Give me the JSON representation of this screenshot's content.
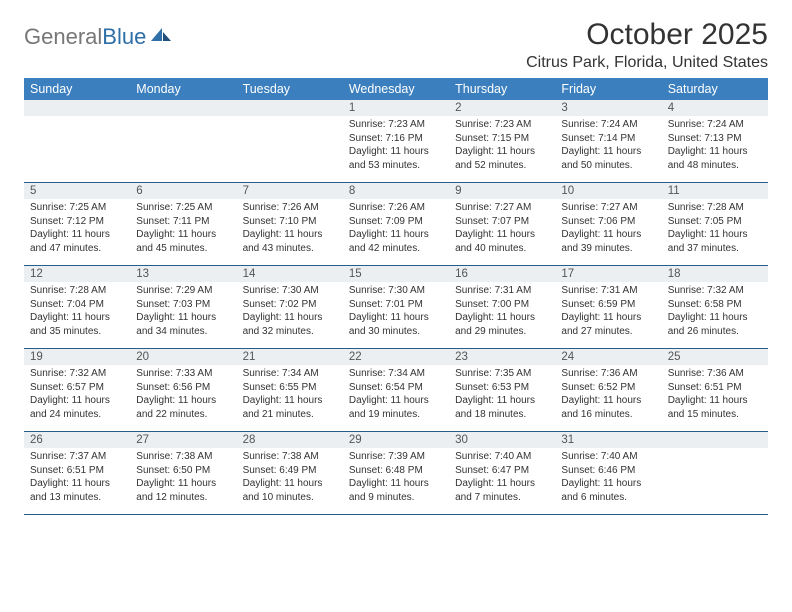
{
  "logo": {
    "text_gray": "General",
    "text_blue": "Blue"
  },
  "title": "October 2025",
  "location": "Citrus Park, Florida, United States",
  "colors": {
    "header_bg": "#3b7fbf",
    "header_text": "#ffffff",
    "daynum_bg": "#eceff1",
    "week_border": "#2a5c8a",
    "text": "#333333"
  },
  "day_labels": [
    "Sunday",
    "Monday",
    "Tuesday",
    "Wednesday",
    "Thursday",
    "Friday",
    "Saturday"
  ],
  "weeks": [
    [
      {
        "n": "",
        "sr": "",
        "ss": "",
        "dl": ""
      },
      {
        "n": "",
        "sr": "",
        "ss": "",
        "dl": ""
      },
      {
        "n": "",
        "sr": "",
        "ss": "",
        "dl": ""
      },
      {
        "n": "1",
        "sr": "Sunrise: 7:23 AM",
        "ss": "Sunset: 7:16 PM",
        "dl": "Daylight: 11 hours and 53 minutes."
      },
      {
        "n": "2",
        "sr": "Sunrise: 7:23 AM",
        "ss": "Sunset: 7:15 PM",
        "dl": "Daylight: 11 hours and 52 minutes."
      },
      {
        "n": "3",
        "sr": "Sunrise: 7:24 AM",
        "ss": "Sunset: 7:14 PM",
        "dl": "Daylight: 11 hours and 50 minutes."
      },
      {
        "n": "4",
        "sr": "Sunrise: 7:24 AM",
        "ss": "Sunset: 7:13 PM",
        "dl": "Daylight: 11 hours and 48 minutes."
      }
    ],
    [
      {
        "n": "5",
        "sr": "Sunrise: 7:25 AM",
        "ss": "Sunset: 7:12 PM",
        "dl": "Daylight: 11 hours and 47 minutes."
      },
      {
        "n": "6",
        "sr": "Sunrise: 7:25 AM",
        "ss": "Sunset: 7:11 PM",
        "dl": "Daylight: 11 hours and 45 minutes."
      },
      {
        "n": "7",
        "sr": "Sunrise: 7:26 AM",
        "ss": "Sunset: 7:10 PM",
        "dl": "Daylight: 11 hours and 43 minutes."
      },
      {
        "n": "8",
        "sr": "Sunrise: 7:26 AM",
        "ss": "Sunset: 7:09 PM",
        "dl": "Daylight: 11 hours and 42 minutes."
      },
      {
        "n": "9",
        "sr": "Sunrise: 7:27 AM",
        "ss": "Sunset: 7:07 PM",
        "dl": "Daylight: 11 hours and 40 minutes."
      },
      {
        "n": "10",
        "sr": "Sunrise: 7:27 AM",
        "ss": "Sunset: 7:06 PM",
        "dl": "Daylight: 11 hours and 39 minutes."
      },
      {
        "n": "11",
        "sr": "Sunrise: 7:28 AM",
        "ss": "Sunset: 7:05 PM",
        "dl": "Daylight: 11 hours and 37 minutes."
      }
    ],
    [
      {
        "n": "12",
        "sr": "Sunrise: 7:28 AM",
        "ss": "Sunset: 7:04 PM",
        "dl": "Daylight: 11 hours and 35 minutes."
      },
      {
        "n": "13",
        "sr": "Sunrise: 7:29 AM",
        "ss": "Sunset: 7:03 PM",
        "dl": "Daylight: 11 hours and 34 minutes."
      },
      {
        "n": "14",
        "sr": "Sunrise: 7:30 AM",
        "ss": "Sunset: 7:02 PM",
        "dl": "Daylight: 11 hours and 32 minutes."
      },
      {
        "n": "15",
        "sr": "Sunrise: 7:30 AM",
        "ss": "Sunset: 7:01 PM",
        "dl": "Daylight: 11 hours and 30 minutes."
      },
      {
        "n": "16",
        "sr": "Sunrise: 7:31 AM",
        "ss": "Sunset: 7:00 PM",
        "dl": "Daylight: 11 hours and 29 minutes."
      },
      {
        "n": "17",
        "sr": "Sunrise: 7:31 AM",
        "ss": "Sunset: 6:59 PM",
        "dl": "Daylight: 11 hours and 27 minutes."
      },
      {
        "n": "18",
        "sr": "Sunrise: 7:32 AM",
        "ss": "Sunset: 6:58 PM",
        "dl": "Daylight: 11 hours and 26 minutes."
      }
    ],
    [
      {
        "n": "19",
        "sr": "Sunrise: 7:32 AM",
        "ss": "Sunset: 6:57 PM",
        "dl": "Daylight: 11 hours and 24 minutes."
      },
      {
        "n": "20",
        "sr": "Sunrise: 7:33 AM",
        "ss": "Sunset: 6:56 PM",
        "dl": "Daylight: 11 hours and 22 minutes."
      },
      {
        "n": "21",
        "sr": "Sunrise: 7:34 AM",
        "ss": "Sunset: 6:55 PM",
        "dl": "Daylight: 11 hours and 21 minutes."
      },
      {
        "n": "22",
        "sr": "Sunrise: 7:34 AM",
        "ss": "Sunset: 6:54 PM",
        "dl": "Daylight: 11 hours and 19 minutes."
      },
      {
        "n": "23",
        "sr": "Sunrise: 7:35 AM",
        "ss": "Sunset: 6:53 PM",
        "dl": "Daylight: 11 hours and 18 minutes."
      },
      {
        "n": "24",
        "sr": "Sunrise: 7:36 AM",
        "ss": "Sunset: 6:52 PM",
        "dl": "Daylight: 11 hours and 16 minutes."
      },
      {
        "n": "25",
        "sr": "Sunrise: 7:36 AM",
        "ss": "Sunset: 6:51 PM",
        "dl": "Daylight: 11 hours and 15 minutes."
      }
    ],
    [
      {
        "n": "26",
        "sr": "Sunrise: 7:37 AM",
        "ss": "Sunset: 6:51 PM",
        "dl": "Daylight: 11 hours and 13 minutes."
      },
      {
        "n": "27",
        "sr": "Sunrise: 7:38 AM",
        "ss": "Sunset: 6:50 PM",
        "dl": "Daylight: 11 hours and 12 minutes."
      },
      {
        "n": "28",
        "sr": "Sunrise: 7:38 AM",
        "ss": "Sunset: 6:49 PM",
        "dl": "Daylight: 11 hours and 10 minutes."
      },
      {
        "n": "29",
        "sr": "Sunrise: 7:39 AM",
        "ss": "Sunset: 6:48 PM",
        "dl": "Daylight: 11 hours and 9 minutes."
      },
      {
        "n": "30",
        "sr": "Sunrise: 7:40 AM",
        "ss": "Sunset: 6:47 PM",
        "dl": "Daylight: 11 hours and 7 minutes."
      },
      {
        "n": "31",
        "sr": "Sunrise: 7:40 AM",
        "ss": "Sunset: 6:46 PM",
        "dl": "Daylight: 11 hours and 6 minutes."
      },
      {
        "n": "",
        "sr": "",
        "ss": "",
        "dl": ""
      }
    ]
  ]
}
